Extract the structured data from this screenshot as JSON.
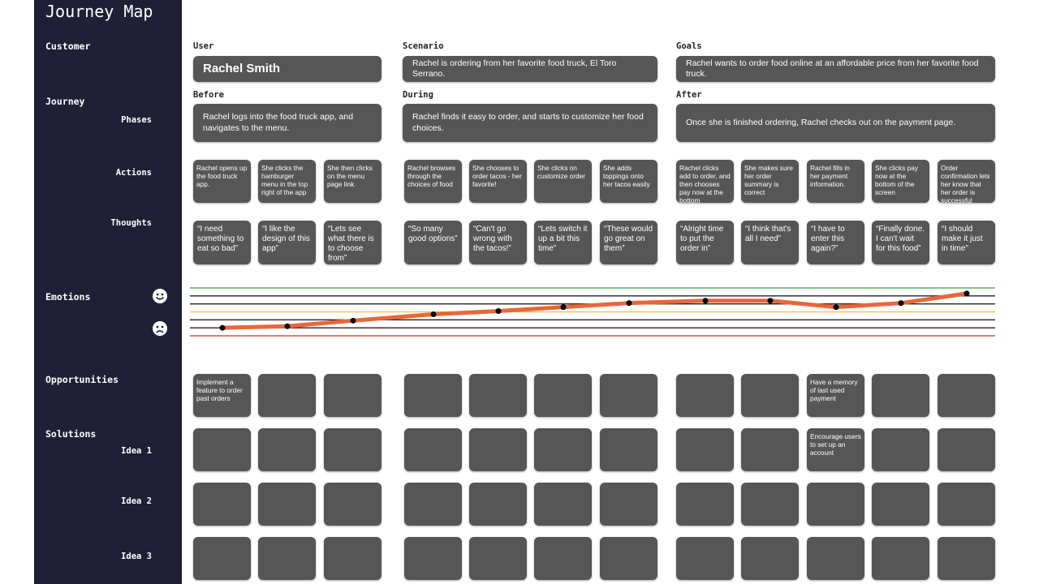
{
  "sidebar": {
    "title": "Journey Map",
    "customer": "Customer",
    "journey": "Journey",
    "phases": "Phases",
    "actions": "Actions",
    "thoughts": "Thoughts",
    "emotions": "Emotions",
    "opportunities": "Opportunities",
    "solutions": "Solutions",
    "ideas": [
      "Idea 1",
      "Idea 2",
      "Idea 3"
    ]
  },
  "customer": {
    "user_label": "User",
    "user": "Rachel Smith",
    "scenario_label": "Scenario",
    "scenario": "Rachel is ordering from her favorite food truck, El Toro Serrano.",
    "goals_label": "Goals",
    "goals": "Rachel wants to order food online at an affordable price from her favorite food truck."
  },
  "phases": [
    {
      "name": "Before",
      "description": "Rachel logs into the food truck app, and navigates to the menu."
    },
    {
      "name": "During",
      "description": "Rachel finds it easy to order, and starts to customize her food choices."
    },
    {
      "name": "After",
      "description": "Once she is finished ordering, Rachel checks out on the payment page."
    }
  ],
  "actions": [
    "Rachel opens up the food truck app.",
    "She clicks the hamburger menu in the top right of the app",
    "She then clicks on the menu page link",
    "Rachel browses through the choices of food",
    "She chooses to order tacos - her favorite!",
    "She clicks on customize order",
    "She adds toppings onto her tacos easily",
    "Rachel clicks add to order, and then chooses pay now at the bottom",
    "She makes sure her order summary is correct",
    "Rachel fills in her payment information.",
    "She clicks pay now at the bottom of the screen",
    "Order confirmation lets her know that her order is successful"
  ],
  "thoughts": [
    "“I need something to eat so bad”",
    "“I like the design of this app”",
    "“Lets see what there is to choose from”",
    "“So many good options”",
    "“Can't go wrong with the tacos!”",
    "“Lets switch it up a bit this time”",
    "“These would go great on them”",
    "“Alright time to put the order in”",
    "“I think that's all I need”",
    "“I have to enter this again?”",
    "“Finally done. I can't wait for this food”",
    "“I should make it just in time”"
  ],
  "emotions": {
    "ylim": [
      0,
      6
    ],
    "guides": [
      {
        "value": 0,
        "color": "#d32f2f"
      },
      {
        "value": 1,
        "color": "#222222"
      },
      {
        "value": 2,
        "color": "#222222"
      },
      {
        "value": 3,
        "color": "#f2c318"
      },
      {
        "value": 4,
        "color": "#222222"
      },
      {
        "value": 5,
        "color": "#222222"
      },
      {
        "value": 6,
        "color": "#2fa836"
      }
    ],
    "values": [
      1.0,
      1.2,
      1.9,
      2.7,
      3.1,
      3.6,
      4.1,
      4.4,
      4.4,
      3.6,
      4.1,
      5.3
    ]
  },
  "opportunities": [
    "Implement a feature to order past orders",
    null,
    null,
    null,
    null,
    null,
    null,
    null,
    null,
    "Have a memory of last used payment",
    null,
    null
  ],
  "ideas": [
    [
      null,
      null,
      null,
      null,
      null,
      null,
      null,
      null,
      null,
      "Encourage users to set up an account",
      null,
      null
    ],
    [
      null,
      null,
      null,
      null,
      null,
      null,
      null,
      null,
      null,
      null,
      null,
      null
    ],
    [
      null,
      null,
      null,
      null,
      null,
      null,
      null,
      null,
      null,
      null,
      null,
      null
    ]
  ]
}
